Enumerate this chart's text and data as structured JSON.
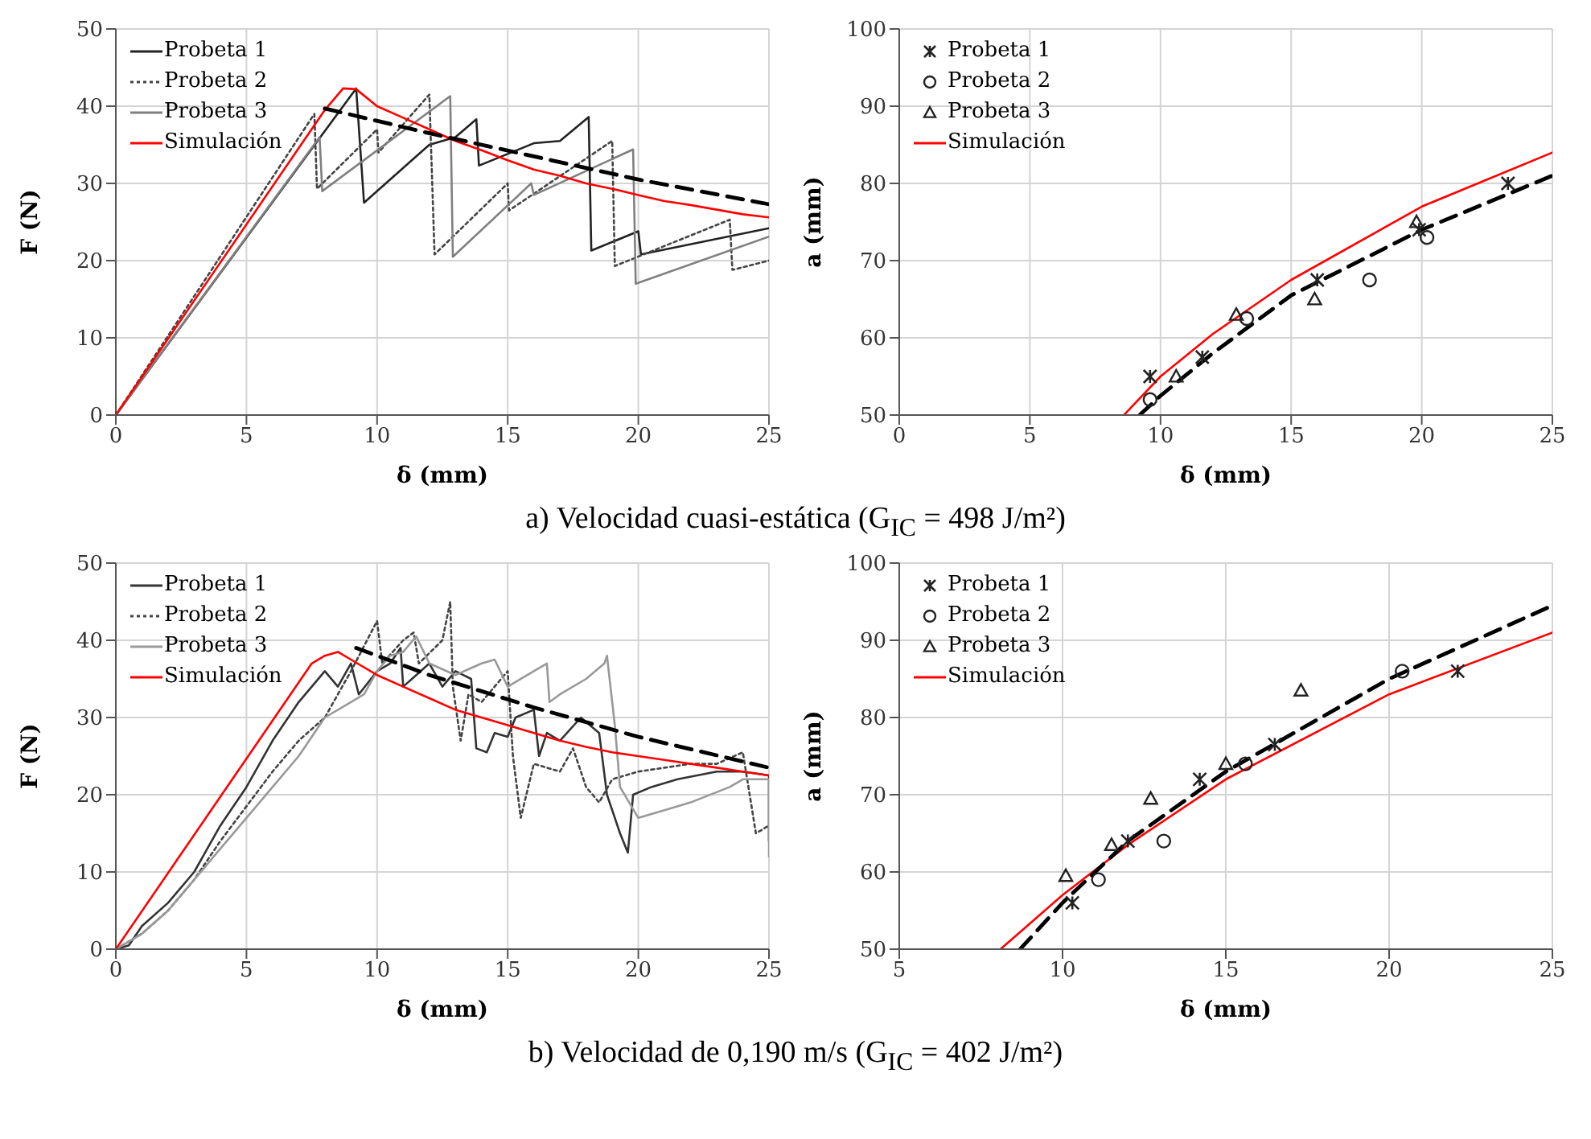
{
  "chart_data": [
    {
      "type": "line",
      "xlabel": "δ (mm)",
      "ylabel": "F (N)",
      "xlim": [
        0,
        25
      ],
      "xticks": [
        0,
        5,
        10,
        15,
        20,
        25
      ],
      "ylim": [
        0,
        50
      ],
      "yticks": [
        0,
        10,
        20,
        30,
        40,
        50
      ],
      "grid": true,
      "legend": "top left",
      "marker": "none",
      "annotations": [
        "a) Velocidad cuasi-estática (G$_{IC}$ = 498 J/m²)"
      ],
      "series": [
        {
          "name": "Probeta 1",
          "color": "#222222",
          "line_style": "solid",
          "x": [
            0,
            9.2,
            9.5,
            12,
            13,
            13.8,
            13.9,
            16,
            17,
            18.1,
            18.2,
            20,
            20.1,
            25
          ],
          "values": [
            0,
            42.3,
            27.5,
            35,
            36,
            38.3,
            32.3,
            35.2,
            35.5,
            38.6,
            21.3,
            23.8,
            20.8,
            24.2
          ]
        },
        {
          "name": "Probeta 2",
          "color": "#444444",
          "line_style": "dotted",
          "x": [
            0,
            7.6,
            7.7,
            10,
            10.05,
            12,
            12.2,
            15,
            15.05,
            19,
            19.1,
            23.5,
            23.6,
            25
          ],
          "values": [
            0,
            39,
            29.3,
            37,
            34,
            41.5,
            20.8,
            30,
            26.5,
            35.5,
            19.3,
            25.3,
            18.8,
            20
          ]
        },
        {
          "name": "Probeta 3",
          "color": "#808080",
          "line_style": "solid",
          "x": [
            0,
            7.8,
            7.9,
            12.8,
            12.9,
            15.9,
            16,
            19.8,
            19.9,
            25
          ],
          "values": [
            0,
            36,
            29,
            41.3,
            20.5,
            30,
            28.5,
            34.4,
            17,
            23.1
          ]
        },
        {
          "name": "Simulación",
          "color": "#ff0000",
          "line_style": "solid",
          "x": [
            0,
            8,
            8.7,
            9.2,
            10,
            11,
            12,
            13,
            14,
            15,
            16,
            17,
            18,
            19,
            20,
            21,
            22,
            23,
            24,
            25
          ],
          "values": [
            0,
            39.5,
            42.3,
            42.2,
            40,
            38.5,
            37,
            35.5,
            34.3,
            33,
            31.8,
            31,
            30,
            29.3,
            28.5,
            27.7,
            27.2,
            26.6,
            26,
            25.6
          ]
        },
        {
          "color": "#000000",
          "line_style": "dashed",
          "x": [
            8,
            12,
            16,
            20,
            25
          ],
          "values": [
            39.7,
            36.5,
            33.5,
            30.5,
            27.3
          ]
        }
      ]
    },
    {
      "type": "scatter",
      "xlabel": "δ (mm)",
      "ylabel": "a (mm)",
      "xlim": [
        0,
        25
      ],
      "xticks": [
        0,
        5,
        10,
        15,
        20,
        25
      ],
      "ylim": [
        50,
        100
      ],
      "yticks": [
        50,
        60,
        70,
        80,
        90,
        100
      ],
      "grid": true,
      "legend": "top left",
      "series": [
        {
          "name": "Probeta 1",
          "color": "#222222",
          "marker": "cross",
          "x": [
            9.6,
            11.6,
            16,
            19.9,
            23.3
          ],
          "values": [
            55,
            57.5,
            67.5,
            74,
            80
          ]
        },
        {
          "name": "Probeta 2",
          "color": "#222222",
          "marker": "circle",
          "x": [
            9.6,
            13.3,
            18,
            20.2
          ],
          "values": [
            52,
            62.5,
            67.5,
            73
          ]
        },
        {
          "name": "Probeta 3",
          "color": "#222222",
          "marker": "triangle",
          "x": [
            10.6,
            12.9,
            15.9,
            19.8
          ],
          "values": [
            55,
            63,
            65,
            75
          ]
        },
        {
          "name": "Simulación",
          "type": "line",
          "color": "#ff0000",
          "line_style": "solid",
          "marker": "none",
          "x": [
            8.6,
            10,
            12,
            15,
            20,
            25
          ],
          "values": [
            50,
            55,
            60.5,
            67.5,
            77,
            84
          ]
        },
        {
          "type": "line",
          "color": "#000000",
          "line_style": "dashed",
          "marker": "none",
          "x": [
            9.2,
            10,
            12,
            15,
            20,
            25
          ],
          "values": [
            50,
            52.5,
            58,
            65.5,
            74,
            81
          ]
        }
      ]
    },
    {
      "type": "line",
      "xlabel": "δ (mm)",
      "ylabel": "F (N)",
      "xlim": [
        0,
        25
      ],
      "xticks": [
        0,
        5,
        10,
        15,
        20,
        25
      ],
      "ylim": [
        0,
        50
      ],
      "yticks": [
        0,
        10,
        20,
        30,
        40,
        50
      ],
      "grid": true,
      "legend": "top left",
      "marker": "none",
      "annotations": [
        "b) Velocidad de 0,190 m/s (G$_{IC}$ = 402 J/m²)"
      ],
      "series": [
        {
          "name": "Probeta 1",
          "color": "#333333",
          "line_style": "solid",
          "x": [
            0,
            0.5,
            1,
            2,
            3,
            4,
            5,
            6,
            7,
            8,
            8.5,
            9,
            9.3,
            10,
            10.5,
            10.9,
            11,
            12,
            12.5,
            13,
            13.6,
            13.8,
            14.2,
            14.5,
            15,
            15.3,
            16,
            16.2,
            16.5,
            17,
            17.8,
            18.5,
            18.8,
            19.3,
            19.6,
            19.8,
            20.5,
            21.5,
            23,
            24,
            25,
            25
          ],
          "values": [
            0,
            0.5,
            3,
            6,
            10,
            16,
            21,
            27,
            32,
            36,
            34,
            37,
            33,
            36,
            37,
            39,
            34,
            37,
            34,
            36,
            35,
            26,
            25.5,
            28,
            27.5,
            30,
            31,
            25,
            28,
            27,
            30,
            28,
            20,
            15,
            12.5,
            20,
            21,
            22,
            23,
            23,
            22.5,
            14
          ]
        },
        {
          "name": "Probeta 2",
          "color": "#444444",
          "line_style": "dotted",
          "x": [
            0,
            1,
            2,
            3,
            4,
            5,
            6,
            7,
            8,
            8.5,
            9,
            10,
            10.2,
            11,
            11.4,
            11.6,
            12.5,
            12.8,
            12.9,
            13.2,
            13.5,
            14,
            15,
            15.2,
            15.5,
            16,
            17,
            17.5,
            18,
            18.5,
            19,
            20,
            21,
            22,
            23,
            24,
            24.5,
            25
          ],
          "values": [
            0,
            2,
            5,
            9,
            14,
            18.5,
            23,
            27,
            30,
            33,
            36,
            42.5,
            37,
            40,
            41,
            37,
            40,
            45,
            34,
            27,
            33,
            32,
            36,
            25,
            17,
            24,
            23,
            26,
            21,
            19,
            22,
            23,
            23.5,
            24,
            24,
            25.5,
            15,
            16
          ]
        },
        {
          "name": "Probeta 3",
          "color": "#999999",
          "line_style": "solid",
          "x": [
            0,
            1,
            2,
            3,
            4,
            5,
            6,
            7,
            8,
            9,
            9.5,
            10,
            10.5,
            11,
            11.5,
            12,
            13,
            14,
            14.5,
            15,
            16,
            16.5,
            16.6,
            17,
            18,
            18.7,
            18.8,
            19.1,
            19.3,
            20,
            21,
            22,
            23.5,
            24,
            25,
            25
          ],
          "values": [
            0,
            2,
            5,
            9,
            13,
            17,
            21,
            25,
            30,
            32,
            33,
            36,
            38,
            38.5,
            40.5,
            37,
            35.5,
            37,
            37.5,
            34,
            36,
            37,
            32,
            33,
            35,
            37,
            38,
            29,
            21,
            17,
            18,
            19,
            21,
            22,
            22,
            12
          ]
        },
        {
          "name": "Simulación",
          "color": "#ff0000",
          "line_style": "solid",
          "x": [
            0,
            7.5,
            8,
            8.5,
            9,
            10,
            11,
            12,
            13,
            14,
            15,
            16,
            17,
            18,
            19,
            20,
            21,
            22,
            23,
            24,
            25
          ],
          "values": [
            0,
            37,
            38,
            38.5,
            37.5,
            35.5,
            34,
            32.5,
            31,
            30,
            29,
            28,
            27,
            26.2,
            25.5,
            25,
            24.5,
            24,
            23.5,
            23,
            22.5
          ]
        },
        {
          "color": "#000000",
          "line_style": "dashed",
          "x": [
            9.2,
            12,
            16,
            20,
            25
          ],
          "values": [
            39,
            35.5,
            31.3,
            27.5,
            23.5
          ]
        }
      ]
    },
    {
      "type": "scatter",
      "xlabel": "δ (mm)",
      "ylabel": "a (mm)",
      "xlim": [
        5,
        25
      ],
      "xticks": [
        5,
        10,
        15,
        20,
        25
      ],
      "ylim": [
        50,
        100
      ],
      "yticks": [
        50,
        60,
        70,
        80,
        90,
        100
      ],
      "grid": true,
      "legend": "top left",
      "series": [
        {
          "name": "Probeta 1",
          "color": "#222222",
          "marker": "cross",
          "x": [
            10.3,
            12,
            14.2,
            16.5,
            22.1
          ],
          "values": [
            56,
            64,
            72,
            76.5,
            86
          ]
        },
        {
          "name": "Probeta 2",
          "color": "#222222",
          "marker": "circle",
          "x": [
            11.1,
            13.1,
            15.6,
            20.4
          ],
          "values": [
            59,
            64,
            74,
            86
          ]
        },
        {
          "name": "Probeta 3",
          "color": "#222222",
          "marker": "triangle",
          "x": [
            10.1,
            11.5,
            12.7,
            15,
            17.3
          ],
          "values": [
            59.5,
            63.5,
            69.5,
            74,
            83.5
          ]
        },
        {
          "name": "Simulación",
          "type": "line",
          "color": "#ff0000",
          "line_style": "solid",
          "marker": "none",
          "x": [
            8.1,
            10,
            12,
            15,
            20,
            25
          ],
          "values": [
            50,
            57,
            63.5,
            72,
            83,
            91
          ]
        },
        {
          "type": "line",
          "color": "#000000",
          "line_style": "dashed",
          "marker": "none",
          "x": [
            8.7,
            10,
            12,
            15,
            20,
            25
          ],
          "values": [
            50,
            56,
            64,
            73,
            85,
            94.5
          ]
        }
      ]
    }
  ]
}
